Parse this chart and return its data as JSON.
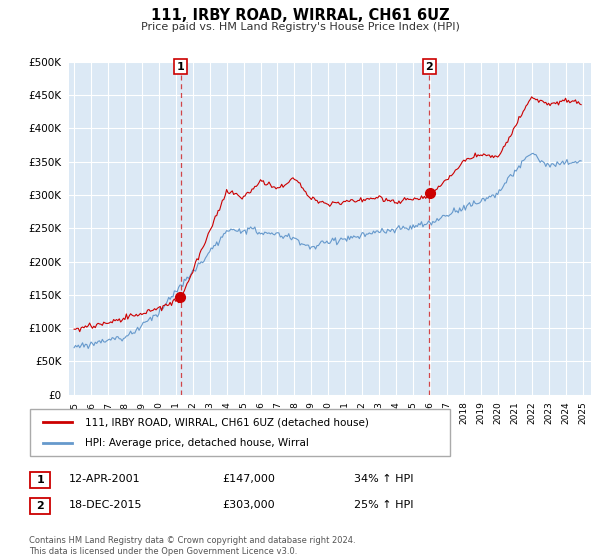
{
  "title": "111, IRBY ROAD, WIRRAL, CH61 6UZ",
  "subtitle": "Price paid vs. HM Land Registry's House Price Index (HPI)",
  "ylim": [
    0,
    500000
  ],
  "yticks": [
    0,
    50000,
    100000,
    150000,
    200000,
    250000,
    300000,
    350000,
    400000,
    450000,
    500000
  ],
  "background_color": "#ffffff",
  "plot_bg_color": "#dce9f5",
  "grid_color": "#ffffff",
  "sale1_date_num": 2001.28,
  "sale1_price": 147000,
  "sale1_label": "1",
  "sale1_date_str": "12-APR-2001",
  "sale1_amount": "£147,000",
  "sale1_hpi": "34% ↑ HPI",
  "sale2_date_num": 2015.96,
  "sale2_price": 303000,
  "sale2_label": "2",
  "sale2_date_str": "18-DEC-2015",
  "sale2_amount": "£303,000",
  "sale2_hpi": "25% ↑ HPI",
  "legend_line1": "111, IRBY ROAD, WIRRAL, CH61 6UZ (detached house)",
  "legend_line2": "HPI: Average price, detached house, Wirral",
  "footnote": "Contains HM Land Registry data © Crown copyright and database right 2024.\nThis data is licensed under the Open Government Licence v3.0.",
  "line_color_red": "#cc0000",
  "line_color_blue": "#6699cc",
  "vline_color": "#cc0000",
  "xlim_left": 1994.7,
  "xlim_right": 2025.5,
  "xtick_start": 1995,
  "xtick_end": 2025
}
